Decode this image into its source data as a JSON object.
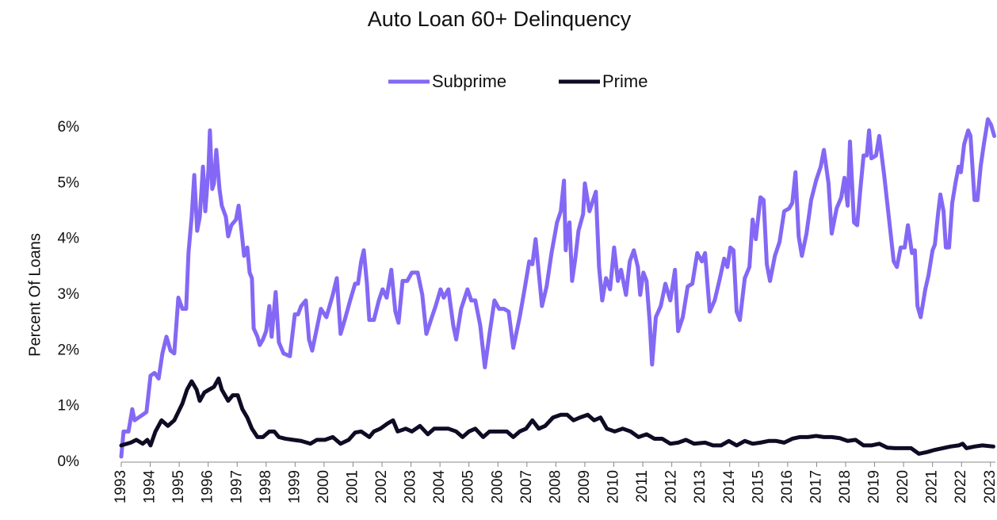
{
  "chart_data": {
    "type": "line",
    "title": "Auto Loan 60+ Delinquency",
    "ylabel": "Percent Of Loans",
    "legend": "top",
    "grid": false,
    "xlim": [
      1993,
      2023.17
    ],
    "xticks": [
      1993,
      1994,
      1995,
      1996,
      1997,
      1998,
      1999,
      2000,
      2001,
      2002,
      2003,
      2004,
      2005,
      2006,
      2007,
      2008,
      2009,
      2010,
      2011,
      2012,
      2013,
      2014,
      2015,
      2016,
      2017,
      2018,
      2019,
      2020,
      2021,
      2022,
      2023
    ],
    "ylim": [
      0,
      6
    ],
    "yticks": [
      {
        "value": 0,
        "label": "0%"
      },
      {
        "value": 1,
        "label": "1%"
      },
      {
        "value": 2,
        "label": "2%"
      },
      {
        "value": 3,
        "label": "3%"
      },
      {
        "value": 4,
        "label": "4%"
      },
      {
        "value": 5,
        "label": "5%"
      },
      {
        "value": 6,
        "label": "6%"
      }
    ],
    "series": [
      {
        "name": "Subprime",
        "color": "#8468f5",
        "x": [
          1993.0,
          1993.08,
          1993.25,
          1993.38,
          1993.46,
          1993.74,
          1993.87,
          1994.01,
          1994.15,
          1994.29,
          1994.42,
          1994.56,
          1994.7,
          1994.83,
          1994.97,
          1995.11,
          1995.24,
          1995.32,
          1995.43,
          1995.52,
          1995.62,
          1995.71,
          1995.82,
          1995.9,
          1996.01,
          1996.06,
          1996.14,
          1996.2,
          1996.28,
          1996.39,
          1996.47,
          1996.61,
          1996.69,
          1996.8,
          1996.96,
          1997.05,
          1997.16,
          1997.24,
          1997.35,
          1997.43,
          1997.51,
          1997.57,
          1997.7,
          1997.78,
          1997.89,
          1998.0,
          1998.11,
          1998.19,
          1998.33,
          1998.44,
          1998.6,
          1998.82,
          1998.99,
          1999.1,
          1999.21,
          1999.37,
          1999.48,
          1999.59,
          1999.75,
          1999.89,
          2000.08,
          2000.3,
          2000.44,
          2000.57,
          2000.74,
          2000.9,
          2001.07,
          2001.17,
          2001.28,
          2001.37,
          2001.48,
          2001.56,
          2001.72,
          2001.89,
          2002.02,
          2002.16,
          2002.32,
          2002.46,
          2002.57,
          2002.71,
          2002.87,
          2003.03,
          2003.23,
          2003.39,
          2003.53,
          2003.72,
          2003.85,
          2004.02,
          2004.13,
          2004.29,
          2004.46,
          2004.56,
          2004.73,
          2004.95,
          2005.08,
          2005.22,
          2005.39,
          2005.55,
          2005.71,
          2005.88,
          2006.04,
          2006.21,
          2006.37,
          2006.53,
          2006.75,
          2006.92,
          2007.08,
          2007.19,
          2007.3,
          2007.41,
          2007.52,
          2007.68,
          2007.85,
          2008.04,
          2008.17,
          2008.28,
          2008.34,
          2008.39,
          2008.47,
          2008.56,
          2008.67,
          2008.78,
          2008.94,
          2009.0,
          2009.16,
          2009.38,
          2009.49,
          2009.6,
          2009.73,
          2009.87,
          2010.01,
          2010.14,
          2010.25,
          2010.42,
          2010.55,
          2010.69,
          2010.83,
          2010.91,
          2011.02,
          2011.13,
          2011.24,
          2011.32,
          2011.45,
          2011.62,
          2011.78,
          2011.95,
          2012.11,
          2012.22,
          2012.38,
          2012.55,
          2012.71,
          2012.88,
          2013.04,
          2013.15,
          2013.31,
          2013.48,
          2013.64,
          2013.81,
          2013.92,
          2014.02,
          2014.13,
          2014.24,
          2014.35,
          2014.52,
          2014.68,
          2014.79,
          2014.9,
          2015.06,
          2015.17,
          2015.28,
          2015.39,
          2015.56,
          2015.72,
          2015.88,
          2016.05,
          2016.16,
          2016.27,
          2016.38,
          2016.49,
          2016.65,
          2016.81,
          2016.98,
          2017.14,
          2017.25,
          2017.41,
          2017.52,
          2017.69,
          2017.85,
          2017.96,
          2018.07,
          2018.15,
          2018.29,
          2018.4,
          2018.51,
          2018.62,
          2018.73,
          2018.81,
          2018.89,
          2019.05,
          2019.16,
          2019.33,
          2019.49,
          2019.66,
          2019.77,
          2019.9,
          2020.04,
          2020.15,
          2020.29,
          2020.39,
          2020.48,
          2020.59,
          2020.75,
          2020.86,
          2021.0,
          2021.08,
          2021.19,
          2021.27,
          2021.38,
          2021.46,
          2021.57,
          2021.68,
          2021.79,
          2021.9,
          2021.98,
          2022.09,
          2022.23,
          2022.31,
          2022.45,
          2022.55,
          2022.66,
          2022.77,
          2022.91,
          2023.02,
          2023.13
        ],
        "values": [
          0.1,
          0.55,
          0.55,
          0.95,
          0.75,
          0.85,
          0.9,
          1.55,
          1.6,
          1.5,
          1.95,
          2.25,
          2.0,
          1.95,
          2.95,
          2.75,
          2.75,
          3.75,
          4.4,
          5.15,
          4.15,
          4.4,
          5.3,
          4.5,
          5.25,
          5.95,
          4.9,
          5.0,
          5.6,
          4.9,
          4.6,
          4.4,
          4.05,
          4.25,
          4.35,
          4.6,
          4.1,
          3.7,
          3.85,
          3.4,
          3.3,
          2.4,
          2.25,
          2.1,
          2.2,
          2.35,
          2.8,
          2.25,
          3.05,
          2.15,
          1.95,
          1.9,
          2.65,
          2.65,
          2.8,
          2.9,
          2.2,
          2.0,
          2.4,
          2.75,
          2.6,
          3.0,
          3.3,
          2.3,
          2.6,
          2.9,
          3.2,
          3.2,
          3.6,
          3.8,
          3.2,
          2.55,
          2.55,
          2.9,
          3.1,
          2.95,
          3.45,
          2.7,
          2.5,
          3.25,
          3.25,
          3.4,
          3.4,
          3.0,
          2.3,
          2.6,
          2.8,
          3.1,
          2.95,
          3.1,
          2.45,
          2.2,
          2.75,
          3.1,
          2.9,
          2.9,
          2.45,
          1.7,
          2.3,
          2.9,
          2.75,
          2.75,
          2.7,
          2.05,
          2.6,
          3.1,
          3.6,
          3.55,
          4.0,
          3.4,
          2.8,
          3.15,
          3.75,
          4.3,
          4.5,
          5.05,
          3.8,
          4.15,
          4.3,
          3.25,
          3.65,
          4.15,
          4.45,
          5.0,
          4.5,
          4.85,
          3.5,
          2.9,
          3.3,
          3.1,
          3.85,
          3.25,
          3.45,
          3.0,
          3.6,
          3.8,
          3.5,
          3.0,
          3.4,
          3.25,
          2.5,
          1.75,
          2.6,
          2.8,
          3.2,
          2.9,
          3.45,
          2.35,
          2.6,
          3.15,
          3.2,
          3.75,
          3.6,
          3.75,
          2.7,
          2.9,
          3.25,
          3.65,
          3.5,
          3.85,
          3.8,
          2.7,
          2.55,
          3.3,
          3.5,
          4.35,
          4.0,
          4.75,
          4.7,
          3.55,
          3.25,
          3.7,
          3.95,
          4.5,
          4.55,
          4.65,
          5.2,
          4.05,
          3.7,
          4.1,
          4.7,
          5.05,
          5.3,
          5.6,
          5.0,
          4.1,
          4.55,
          4.75,
          5.1,
          4.6,
          5.75,
          4.3,
          4.25,
          4.9,
          5.5,
          5.5,
          5.95,
          5.45,
          5.5,
          5.85,
          5.15,
          4.4,
          3.6,
          3.5,
          3.85,
          3.85,
          4.25,
          3.75,
          3.8,
          2.8,
          2.6,
          3.1,
          3.35,
          3.8,
          3.9,
          4.45,
          4.8,
          4.5,
          3.85,
          3.85,
          4.65,
          5.0,
          5.3,
          5.2,
          5.7,
          5.95,
          5.85,
          4.7,
          4.7,
          5.3,
          5.7,
          6.15,
          6.05,
          5.85
        ]
      },
      {
        "name": "Prime",
        "color": "#0e0c24",
        "x": [
          1993.0,
          1993.33,
          1993.52,
          1993.74,
          1993.9,
          1994.01,
          1994.18,
          1994.39,
          1994.61,
          1994.83,
          1994.97,
          1995.11,
          1995.27,
          1995.43,
          1995.6,
          1995.71,
          1995.87,
          1996.03,
          1996.2,
          1996.36,
          1996.47,
          1996.69,
          1996.85,
          1997.02,
          1997.18,
          1997.35,
          1997.51,
          1997.7,
          1997.89,
          1998.11,
          1998.28,
          1998.44,
          1998.66,
          1998.93,
          1999.21,
          1999.53,
          1999.75,
          2000.03,
          2000.3,
          2000.57,
          2000.85,
          2001.07,
          2001.28,
          2001.56,
          2001.72,
          2001.94,
          2002.21,
          2002.38,
          2002.54,
          2002.82,
          2003.03,
          2003.31,
          2003.58,
          2003.8,
          2004.02,
          2004.29,
          2004.56,
          2004.78,
          2005.0,
          2005.22,
          2005.49,
          2005.71,
          2005.99,
          2006.31,
          2006.53,
          2006.75,
          2006.97,
          2007.19,
          2007.41,
          2007.63,
          2007.9,
          2008.17,
          2008.39,
          2008.61,
          2008.83,
          2009.1,
          2009.32,
          2009.54,
          2009.76,
          2010.03,
          2010.31,
          2010.58,
          2010.85,
          2011.13,
          2011.4,
          2011.67,
          2011.95,
          2012.22,
          2012.49,
          2012.77,
          2013.15,
          2013.42,
          2013.7,
          2013.97,
          2014.24,
          2014.52,
          2014.79,
          2015.06,
          2015.34,
          2015.61,
          2015.88,
          2016.16,
          2016.43,
          2016.7,
          2016.98,
          2017.25,
          2017.52,
          2017.8,
          2018.07,
          2018.34,
          2018.62,
          2018.89,
          2019.16,
          2019.44,
          2019.71,
          2019.98,
          2020.26,
          2020.53,
          2020.81,
          2021.08,
          2021.35,
          2021.62,
          2021.9,
          2022.04,
          2022.17,
          2022.45,
          2022.72,
          2023.1
        ],
        "values": [
          0.3,
          0.35,
          0.4,
          0.33,
          0.4,
          0.3,
          0.55,
          0.75,
          0.65,
          0.75,
          0.9,
          1.05,
          1.3,
          1.45,
          1.3,
          1.1,
          1.25,
          1.3,
          1.35,
          1.5,
          1.3,
          1.1,
          1.2,
          1.2,
          0.95,
          0.8,
          0.6,
          0.45,
          0.45,
          0.55,
          0.55,
          0.45,
          0.42,
          0.4,
          0.38,
          0.33,
          0.4,
          0.4,
          0.45,
          0.33,
          0.4,
          0.53,
          0.55,
          0.45,
          0.55,
          0.6,
          0.7,
          0.75,
          0.55,
          0.6,
          0.55,
          0.65,
          0.5,
          0.6,
          0.6,
          0.6,
          0.55,
          0.45,
          0.55,
          0.6,
          0.45,
          0.55,
          0.55,
          0.55,
          0.45,
          0.55,
          0.6,
          0.75,
          0.6,
          0.65,
          0.8,
          0.85,
          0.85,
          0.75,
          0.8,
          0.85,
          0.75,
          0.8,
          0.6,
          0.55,
          0.6,
          0.55,
          0.45,
          0.5,
          0.42,
          0.42,
          0.33,
          0.35,
          0.4,
          0.33,
          0.35,
          0.3,
          0.3,
          0.38,
          0.3,
          0.38,
          0.33,
          0.35,
          0.38,
          0.38,
          0.35,
          0.42,
          0.45,
          0.45,
          0.47,
          0.45,
          0.45,
          0.43,
          0.38,
          0.4,
          0.3,
          0.3,
          0.33,
          0.26,
          0.25,
          0.25,
          0.25,
          0.15,
          0.18,
          0.22,
          0.25,
          0.28,
          0.3,
          0.33,
          0.25,
          0.28,
          0.3,
          0.28
        ]
      }
    ]
  }
}
